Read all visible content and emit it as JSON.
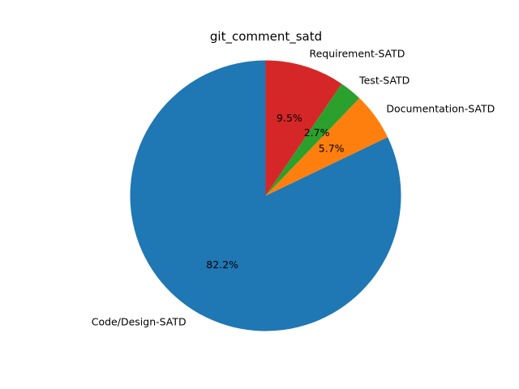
{
  "chart_data": {
    "type": "pie",
    "title": "git_comment_satd",
    "start_angle_deg": 90,
    "direction": "counterclockwise",
    "slices": [
      {
        "label": "Code/Design-SATD",
        "value": 82.2,
        "pct_label": "82.2%",
        "color": "#1f77b4"
      },
      {
        "label": "Documentation-SATD",
        "value": 5.7,
        "pct_label": "5.7%",
        "color": "#ff7f0e"
      },
      {
        "label": "Test-SATD",
        "value": 2.7,
        "pct_label": "2.7%",
        "color": "#2ca02c"
      },
      {
        "label": "Requirement-SATD",
        "value": 9.5,
        "pct_label": "9.5%",
        "color": "#d62728"
      }
    ]
  }
}
